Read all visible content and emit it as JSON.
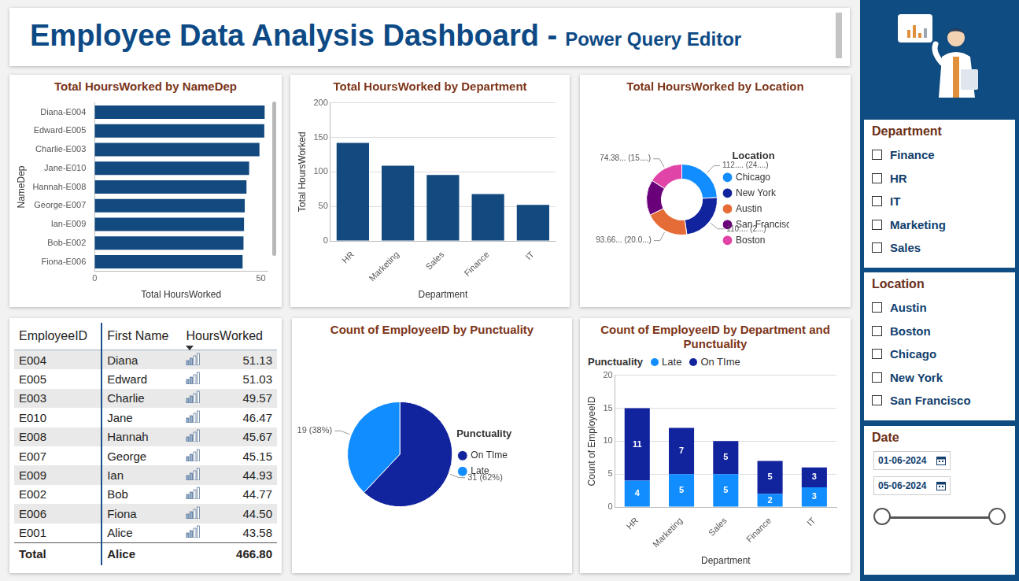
{
  "header": {
    "title": "Employee Data Analysis Dashboard -",
    "subtitle": "Power Query Editor"
  },
  "chart_data": [
    {
      "type": "bar",
      "title": "Total HoursWorked by NameDep",
      "orientation": "horizontal",
      "x_label": "Total HoursWorked",
      "y_label": "NameDep",
      "categories": [
        "Diana-E004",
        "Edward-E005",
        "Charlie-E003",
        "Jane-E010",
        "Hannah-E008",
        "George-E007",
        "Ian-E009",
        "Bob-E002",
        "Fiona-E006"
      ],
      "values": [
        51.13,
        51.03,
        49.57,
        46.47,
        45.67,
        45.15,
        44.93,
        44.77,
        44.5
      ],
      "color": "#12497f",
      "xlim": [
        0,
        52
      ],
      "xticks": [
        0,
        50
      ],
      "grid": false
    },
    {
      "type": "bar",
      "title": "Total HoursWorked by Department",
      "x_label": "Department",
      "y_label": "Total HoursWorked",
      "categories": [
        "HR",
        "Marketing",
        "Sales",
        "Finance",
        "IT"
      ],
      "values": [
        141.9,
        108.9,
        95.6,
        68,
        52.4
      ],
      "color": "#12497f",
      "ylim": [
        0,
        200
      ],
      "yticks": [
        0,
        50,
        100,
        150,
        200
      ],
      "grid": true
    },
    {
      "type": "doughnut",
      "title": "Total HoursWorked by Location",
      "legend_title": "Location",
      "legend": "right",
      "categories": [
        "Chicago",
        "New York",
        "Austin",
        "San Francisco",
        "Boston"
      ],
      "values": [
        112.3,
        110.5,
        93.66,
        75.96,
        74.38
      ],
      "value_labels": [
        "112.... (24....)",
        "110.... (2...)",
        "93.66... (20.0...)",
        null,
        "74.38... (15....)"
      ],
      "colors": [
        "#118dff",
        "#12239e",
        "#e66c37",
        "#6b007b",
        "#e044a7"
      ],
      "data_labels": true
    },
    {
      "type": "pie",
      "title": "Count of EmployeeID by Punctuality",
      "legend_title": "Punctuality",
      "legend": "right",
      "categories": [
        "On TIme",
        "Late"
      ],
      "values": [
        31,
        19
      ],
      "value_labels": [
        "31 (62%)",
        "19 (38%)"
      ],
      "colors": [
        "#12239e",
        "#118dff"
      ],
      "data_labels": true
    },
    {
      "type": "bar",
      "title": "Count of EmployeeID by Department and Punctuality",
      "stacked": true,
      "legend": "top-left",
      "legend_title": "Punctuality",
      "x_label": "Department",
      "y_label": "Count of EmployeeID",
      "categories": [
        "HR",
        "Marketing",
        "Sales",
        "Finance",
        "IT"
      ],
      "series": [
        {
          "name": "Late",
          "color": "#118dff",
          "values": [
            4,
            5,
            5,
            2,
            3
          ]
        },
        {
          "name": "On TIme",
          "color": "#12239e",
          "values": [
            11,
            7,
            5,
            5,
            3
          ]
        }
      ],
      "ylim": [
        0,
        20
      ],
      "yticks": [
        0,
        5,
        10,
        15,
        20
      ],
      "grid": true,
      "data_labels": true
    }
  ],
  "table": {
    "columns": [
      "EmployeeID",
      "First Name",
      "HoursWorked"
    ],
    "rows": [
      [
        "E004",
        "Diana",
        "51.13"
      ],
      [
        "E005",
        "Edward",
        "51.03"
      ],
      [
        "E003",
        "Charlie",
        "49.57"
      ],
      [
        "E010",
        "Jane",
        "46.47"
      ],
      [
        "E008",
        "Hannah",
        "45.67"
      ],
      [
        "E007",
        "George",
        "45.15"
      ],
      [
        "E009",
        "Ian",
        "44.93"
      ],
      [
        "E002",
        "Bob",
        "44.77"
      ],
      [
        "E006",
        "Fiona",
        "44.50"
      ],
      [
        "E001",
        "Alice",
        "43.58"
      ]
    ],
    "total": [
      "Total",
      "Alice",
      "466.80"
    ]
  },
  "slicers": [
    {
      "title": "Department",
      "items": [
        "Finance",
        "HR",
        "IT",
        "Marketing",
        "Sales"
      ]
    },
    {
      "title": "Location",
      "items": [
        "Austin",
        "Boston",
        "Chicago",
        "New York",
        "San Francisco"
      ]
    },
    {
      "title": "Date",
      "items": [
        "01-06-2024",
        "05-06-2024"
      ]
    }
  ]
}
